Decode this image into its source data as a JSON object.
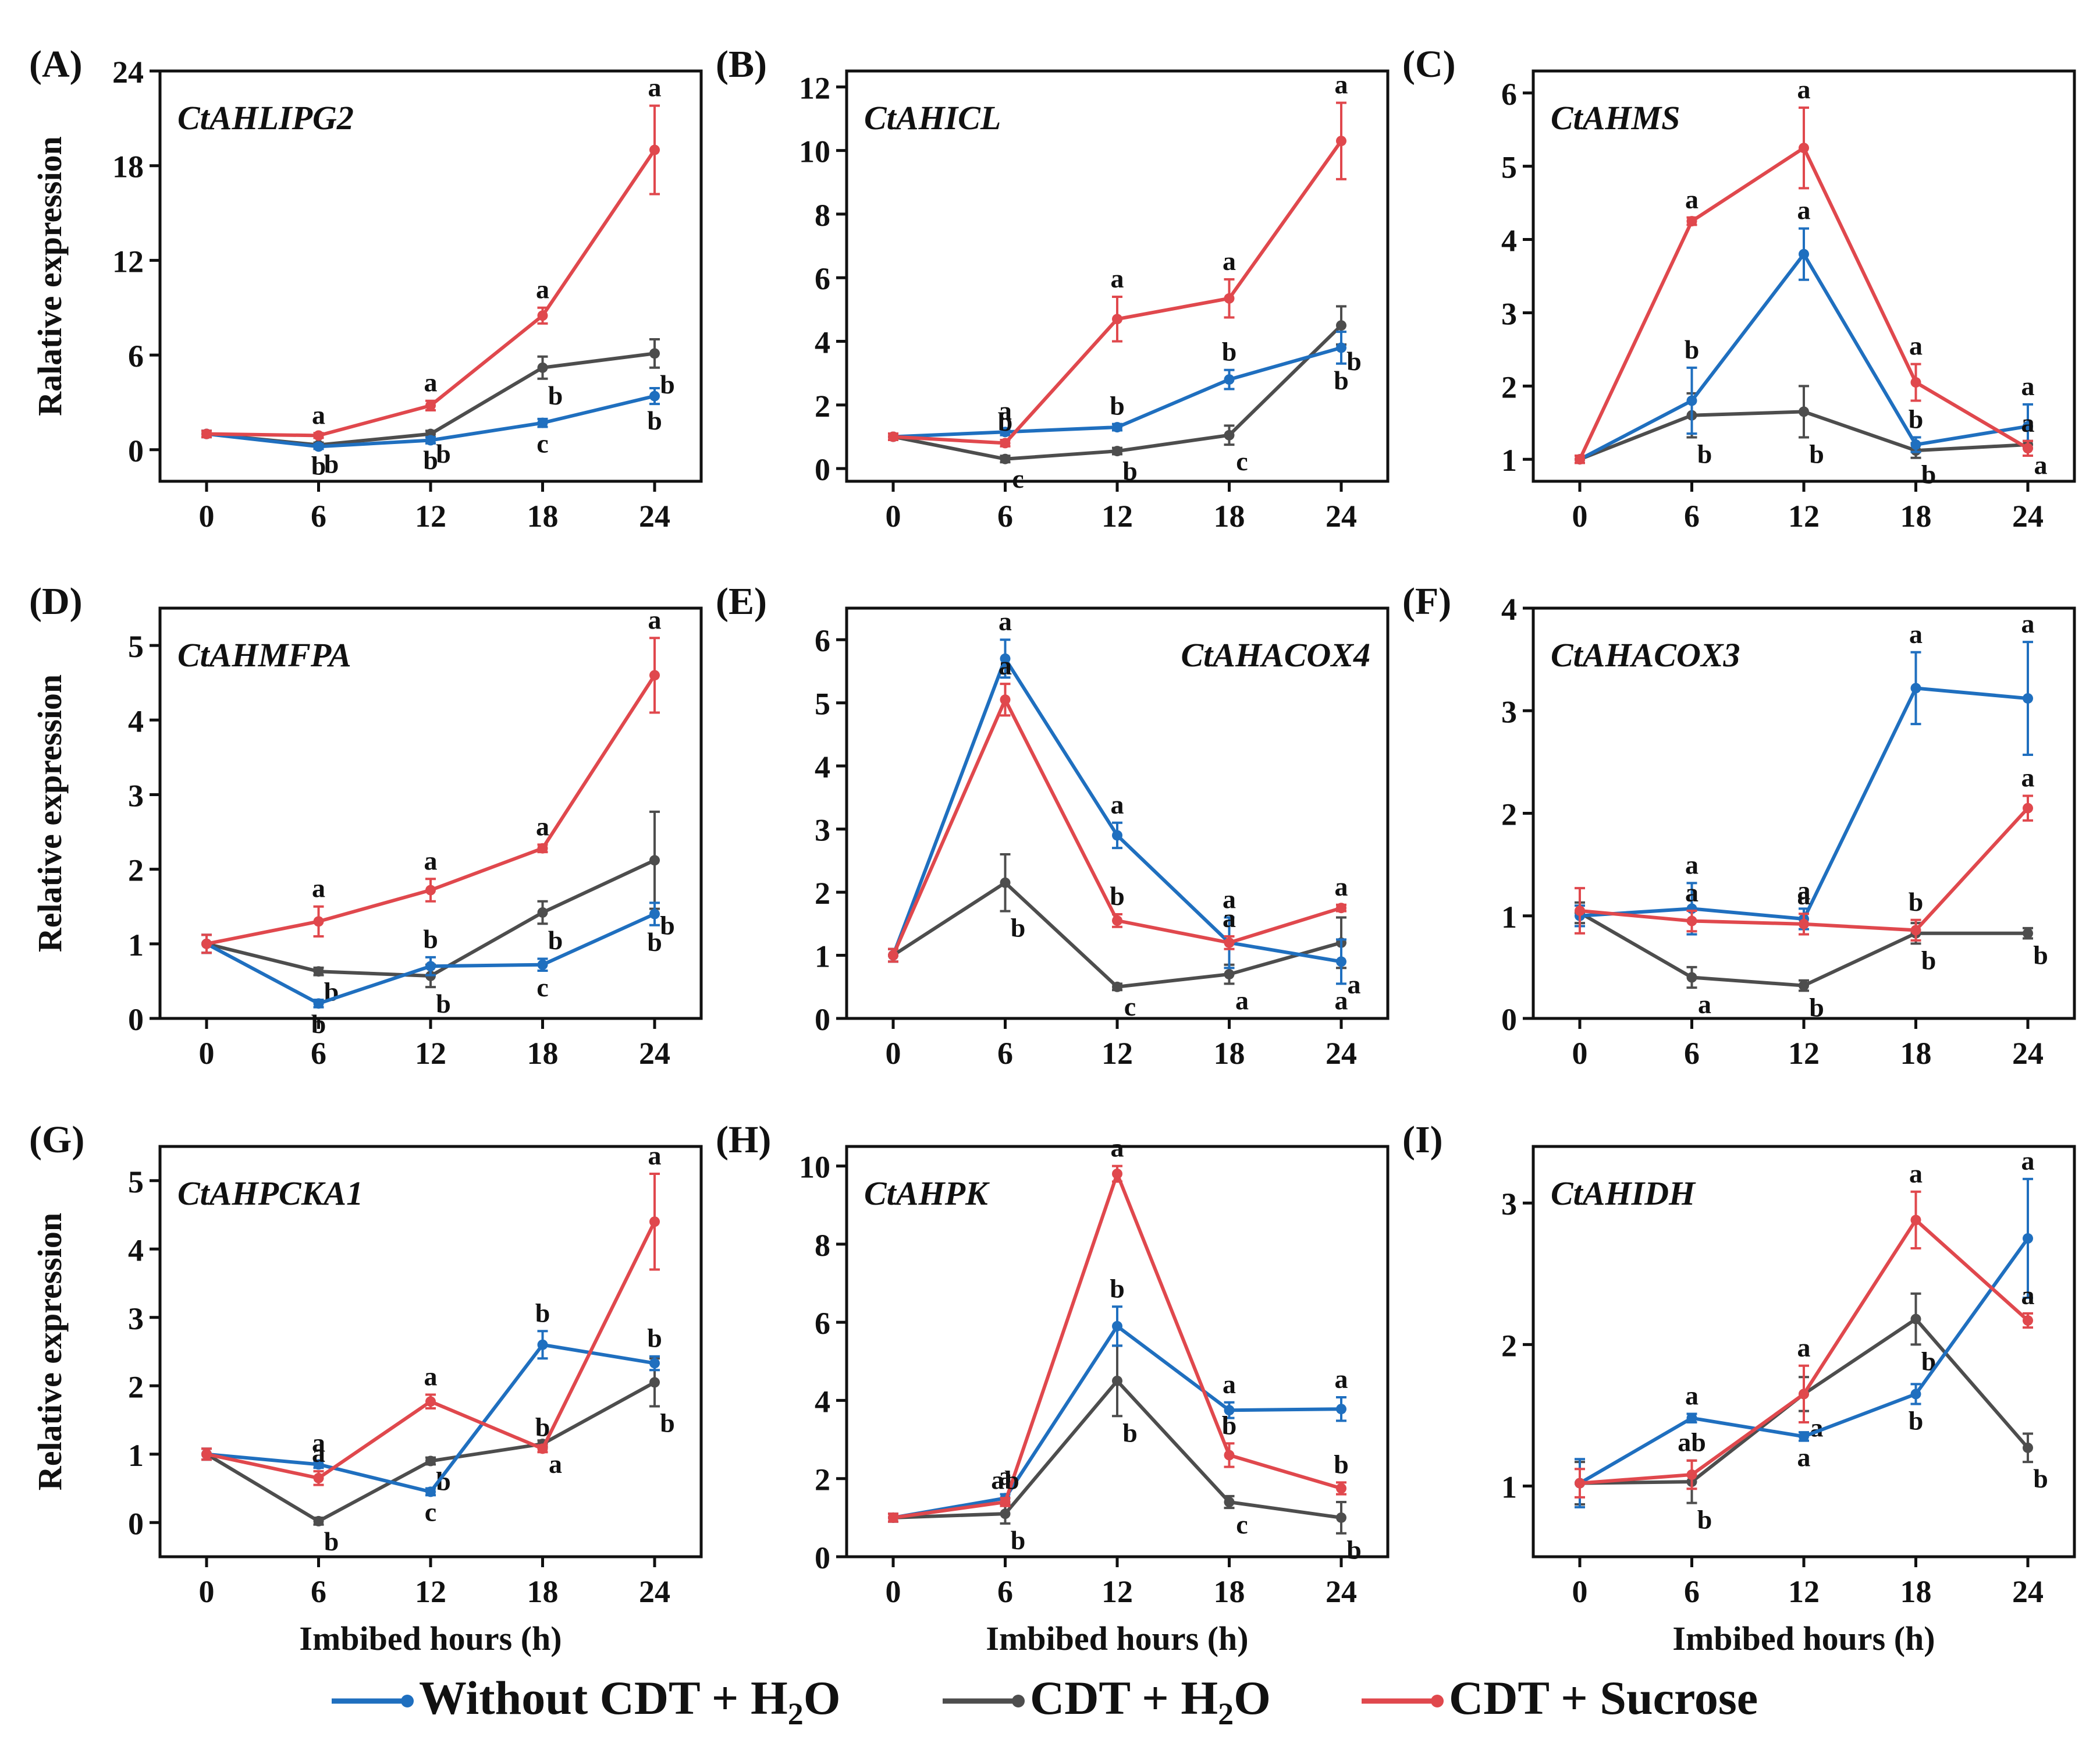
{
  "x_axis_label": "Imbibed hours (h)",
  "y_axis_labels": {
    "row1": "Ralative expression",
    "row2": "Relative expression",
    "row3": "Relative expression"
  },
  "colors": {
    "without_cdt": "#1f6fbf",
    "cdt_h2o": "#4d4d4d",
    "cdt_sucrose": "#e0484d"
  },
  "legend": [
    {
      "key": "without_cdt",
      "label": "Without CDT + H",
      "sub": "2",
      "tail": "O"
    },
    {
      "key": "cdt_h2o",
      "label": "CDT + H",
      "sub": "2",
      "tail": "O"
    },
    {
      "key": "cdt_sucrose",
      "label": "CDT + Sucrose",
      "sub": "",
      "tail": ""
    }
  ],
  "chart_data": [
    {
      "type": "line",
      "panel": "(A)",
      "gene": "CtAHLIPG2",
      "title_pos": "left",
      "x": [
        0,
        6,
        12,
        18,
        24
      ],
      "ylim": [
        -2,
        24
      ],
      "yticks": [
        0,
        6,
        12,
        18,
        24
      ],
      "series": [
        {
          "key": "without_cdt",
          "values": [
            1,
            0.2,
            0.6,
            1.7,
            3.4
          ],
          "err": [
            0.2,
            0.15,
            0.2,
            0.25,
            0.5
          ],
          "letters": [
            "",
            "b",
            "b",
            "c",
            "b"
          ]
        },
        {
          "key": "cdt_h2o",
          "values": [
            1,
            0.3,
            1,
            5.2,
            6.1
          ],
          "err": [
            0.2,
            0.15,
            0.2,
            0.7,
            0.9
          ],
          "letters": [
            "",
            "b",
            "b",
            "b",
            "b"
          ]
        },
        {
          "key": "cdt_sucrose",
          "values": [
            1,
            0.9,
            2.8,
            8.5,
            19
          ],
          "err": [
            0.2,
            0.15,
            0.3,
            0.5,
            2.8
          ],
          "letters": [
            "",
            "a",
            "a",
            "a",
            "a"
          ]
        }
      ]
    },
    {
      "type": "line",
      "panel": "(B)",
      "gene": "CtAHICL",
      "title_pos": "left",
      "x": [
        0,
        6,
        12,
        18,
        24
      ],
      "ylim": [
        -0.4,
        12.5
      ],
      "yticks": [
        0,
        2,
        4,
        6,
        8,
        10,
        12
      ],
      "series": [
        {
          "key": "without_cdt",
          "values": [
            1,
            1.15,
            1.3,
            2.8,
            3.8
          ],
          "err": [
            0.1,
            0.1,
            0.1,
            0.3,
            0.5
          ],
          "letters": [
            "",
            "a",
            "b",
            "b",
            "b"
          ]
        },
        {
          "key": "cdt_h2o",
          "values": [
            1,
            0.3,
            0.55,
            1.05,
            4.5
          ],
          "err": [
            0.1,
            0.1,
            0.1,
            0.3,
            0.6
          ],
          "letters": [
            "",
            "c",
            "b",
            "c",
            "b"
          ]
        },
        {
          "key": "cdt_sucrose",
          "values": [
            1,
            0.8,
            4.7,
            5.35,
            10.3
          ],
          "err": [
            0.1,
            0.1,
            0.7,
            0.6,
            1.2
          ],
          "letters": [
            "",
            "b",
            "a",
            "a",
            "a"
          ]
        }
      ]
    },
    {
      "type": "line",
      "panel": "(C)",
      "gene": "CtAHMS",
      "title_pos": "left",
      "x": [
        0,
        6,
        12,
        18,
        24
      ],
      "ylim": [
        0.7,
        6.3
      ],
      "yticks": [
        1,
        2,
        3,
        4,
        5,
        6
      ],
      "series": [
        {
          "key": "without_cdt",
          "values": [
            1,
            1.8,
            3.8,
            1.2,
            1.45
          ],
          "err": [
            0.05,
            0.45,
            0.35,
            0.1,
            0.3
          ],
          "letters": [
            "",
            "b",
            "a",
            "b",
            "a"
          ]
        },
        {
          "key": "cdt_h2o",
          "values": [
            1,
            1.6,
            1.65,
            1.12,
            1.2
          ],
          "err": [
            0.05,
            0.3,
            0.35,
            0.1,
            0.05
          ],
          "letters": [
            "",
            "b",
            "b",
            "b",
            "a"
          ]
        },
        {
          "key": "cdt_sucrose",
          "values": [
            1,
            4.25,
            5.25,
            2.05,
            1.15
          ],
          "err": [
            0.05,
            0.05,
            0.55,
            0.25,
            0.1
          ],
          "letters": [
            "",
            "a",
            "a",
            "a",
            "a"
          ]
        }
      ]
    },
    {
      "type": "line",
      "panel": "(D)",
      "gene": "CtAHMFPA",
      "title_pos": "left",
      "x": [
        0,
        6,
        12,
        18,
        24
      ],
      "ylim": [
        0,
        5.5
      ],
      "yticks": [
        0,
        1,
        2,
        3,
        4,
        5
      ],
      "series": [
        {
          "key": "without_cdt",
          "values": [
            1,
            0.2,
            0.7,
            0.72,
            1.4
          ],
          "err": [
            0.12,
            0.05,
            0.12,
            0.08,
            0.15
          ],
          "letters": [
            "",
            "b",
            "b",
            "c",
            "b"
          ]
        },
        {
          "key": "cdt_h2o",
          "values": [
            1,
            0.63,
            0.57,
            1.42,
            2.12
          ],
          "err": [
            0.12,
            0.05,
            0.15,
            0.15,
            0.65
          ],
          "letters": [
            "",
            "b",
            "b",
            "b",
            "b"
          ]
        },
        {
          "key": "cdt_sucrose",
          "values": [
            1,
            1.3,
            1.72,
            2.28,
            4.6
          ],
          "err": [
            0.12,
            0.2,
            0.15,
            0.05,
            0.5
          ],
          "letters": [
            "",
            "a",
            "a",
            "a",
            "a"
          ]
        }
      ]
    },
    {
      "type": "line",
      "panel": "(E)",
      "gene": "CtAHACOX4",
      "title_pos": "right",
      "x": [
        0,
        6,
        12,
        18,
        24
      ],
      "ylim": [
        0,
        6.5
      ],
      "yticks": [
        0,
        1,
        2,
        3,
        4,
        5,
        6
      ],
      "series": [
        {
          "key": "without_cdt",
          "values": [
            1,
            5.7,
            2.9,
            1.2,
            0.9
          ],
          "err": [
            0.1,
            0.3,
            0.2,
            0.4,
            0.35
          ],
          "letters": [
            "",
            "a",
            "a",
            "a",
            "a"
          ]
        },
        {
          "key": "cdt_h2o",
          "values": [
            1,
            2.15,
            0.5,
            0.7,
            1.2
          ],
          "err": [
            0.1,
            0.45,
            0.05,
            0.15,
            0.4
          ],
          "letters": [
            "",
            "b",
            "c",
            "a",
            "a"
          ]
        },
        {
          "key": "cdt_sucrose",
          "values": [
            1,
            5.05,
            1.55,
            1.2,
            1.75
          ],
          "err": [
            0.1,
            0.25,
            0.1,
            0.1,
            0.05
          ],
          "letters": [
            "",
            "a",
            "b",
            "a",
            "a"
          ]
        }
      ]
    },
    {
      "type": "line",
      "panel": "(F)",
      "gene": "CtAHACOX3",
      "title_pos": "left",
      "x": [
        0,
        6,
        12,
        18,
        24
      ],
      "ylim": [
        0,
        4
      ],
      "yticks": [
        0,
        1,
        2,
        3,
        4
      ],
      "series": [
        {
          "key": "without_cdt",
          "values": [
            1,
            1.07,
            0.97,
            3.22,
            3.12
          ],
          "err": [
            0.1,
            0.25,
            0.1,
            0.35,
            0.55
          ],
          "letters": [
            "",
            "a",
            "a",
            "a",
            "a"
          ]
        },
        {
          "key": "cdt_h2o",
          "values": [
            1.03,
            0.4,
            0.32,
            0.83,
            0.83
          ],
          "err": [
            0.1,
            0.1,
            0.05,
            0.1,
            0.05
          ],
          "letters": [
            "",
            "a",
            "b",
            "b",
            "b"
          ]
        },
        {
          "key": "cdt_sucrose",
          "values": [
            1.05,
            0.95,
            0.92,
            0.86,
            2.05
          ],
          "err": [
            0.22,
            0.1,
            0.1,
            0.1,
            0.12
          ],
          "letters": [
            "",
            "a",
            "a",
            "b",
            "a"
          ]
        }
      ]
    },
    {
      "type": "line",
      "panel": "(G)",
      "gene": "CtAHPCKA1",
      "title_pos": "left",
      "x": [
        0,
        6,
        12,
        18,
        24
      ],
      "ylim": [
        -0.5,
        5.5
      ],
      "yticks": [
        0,
        1,
        2,
        3,
        4,
        5
      ],
      "series": [
        {
          "key": "without_cdt",
          "values": [
            1,
            0.85,
            0.45,
            2.6,
            2.33
          ],
          "err": [
            0.08,
            0.05,
            0.05,
            0.2,
            0.1
          ],
          "letters": [
            "",
            "a",
            "c",
            "b",
            "b"
          ]
        },
        {
          "key": "cdt_h2o",
          "values": [
            1,
            0.02,
            0.9,
            1.15,
            2.05
          ],
          "err": [
            0.08,
            0.05,
            0.05,
            0.05,
            0.35
          ],
          "letters": [
            "",
            "b",
            "b",
            "a",
            "b"
          ]
        },
        {
          "key": "cdt_sucrose",
          "values": [
            1,
            0.65,
            1.77,
            1.08,
            4.4
          ],
          "err": [
            0.08,
            0.1,
            0.1,
            0.05,
            0.7
          ],
          "letters": [
            "",
            "a",
            "a",
            "b",
            "a"
          ]
        }
      ]
    },
    {
      "type": "line",
      "panel": "(H)",
      "gene": "CtAHPK",
      "title_pos": "left",
      "x": [
        0,
        6,
        12,
        18,
        24
      ],
      "ylim": [
        0,
        10.5
      ],
      "yticks": [
        0,
        2,
        4,
        6,
        8,
        10
      ],
      "series": [
        {
          "key": "without_cdt",
          "values": [
            1,
            1.5,
            5.9,
            3.75,
            3.78
          ],
          "err": [
            0.1,
            0.1,
            0.5,
            0.2,
            0.3
          ],
          "letters": [
            "",
            "a",
            "b",
            "a",
            "a"
          ]
        },
        {
          "key": "cdt_h2o",
          "values": [
            1,
            1.1,
            4.5,
            1.4,
            1.0
          ],
          "err": [
            0.1,
            0.25,
            0.9,
            0.15,
            0.4
          ],
          "letters": [
            "",
            "b",
            "b",
            "c",
            "b"
          ]
        },
        {
          "key": "cdt_sucrose",
          "values": [
            1,
            1.4,
            9.8,
            2.6,
            1.75
          ],
          "err": [
            0.1,
            0.1,
            0.2,
            0.3,
            0.15
          ],
          "letters": [
            "",
            "ab",
            "a",
            "b",
            "b"
          ]
        }
      ]
    },
    {
      "type": "line",
      "panel": "(I)",
      "gene": "CtAHIDH",
      "title_pos": "left",
      "x": [
        0,
        6,
        12,
        18,
        24
      ],
      "ylim": [
        0.5,
        3.4
      ],
      "yticks": [
        1,
        2,
        3
      ],
      "series": [
        {
          "key": "without_cdt",
          "values": [
            1.02,
            1.48,
            1.35,
            1.65,
            2.75
          ],
          "err": [
            0.17,
            0.03,
            0.03,
            0.07,
            0.42
          ],
          "letters": [
            "",
            "a",
            "a",
            "b",
            "a"
          ]
        },
        {
          "key": "cdt_h2o",
          "values": [
            1.02,
            1.03,
            1.65,
            2.18,
            1.27
          ],
          "err": [
            0.15,
            0.15,
            0.12,
            0.18,
            0.1
          ],
          "letters": [
            "",
            "b",
            "a",
            "b",
            "b"
          ]
        },
        {
          "key": "cdt_sucrose",
          "values": [
            1.02,
            1.08,
            1.65,
            2.88,
            2.17
          ],
          "err": [
            0.1,
            0.1,
            0.2,
            0.2,
            0.05
          ],
          "letters": [
            "",
            "ab",
            "a",
            "a",
            "a"
          ]
        }
      ]
    }
  ]
}
